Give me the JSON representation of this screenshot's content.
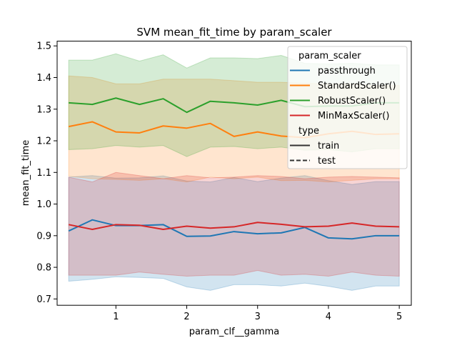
{
  "chart_data": {
    "type": "line",
    "title": "SVM mean_fit_time by param_scaler",
    "xlabel": "param_clf__gamma",
    "ylabel": "mean_fit_time",
    "xlim": [
      0.17,
      5.17
    ],
    "ylim": [
      0.68,
      1.515
    ],
    "xticks": [
      1,
      2,
      3,
      4,
      5
    ],
    "yticks": [
      0.7,
      0.8,
      0.9,
      1.0,
      1.1,
      1.2,
      1.3,
      1.4,
      1.5
    ],
    "x": [
      0.333,
      0.667,
      1.0,
      1.333,
      1.667,
      2.0,
      2.333,
      2.667,
      3.0,
      3.333,
      3.667,
      4.0,
      4.333,
      4.667,
      5.0
    ],
    "legend": {
      "position": "upper right",
      "hue_title": "param_scaler",
      "style_title": "type",
      "style_entries": [
        {
          "label": "train",
          "dash": "solid"
        },
        {
          "label": "test",
          "dash": "dashed"
        }
      ]
    },
    "series": [
      {
        "name": "passthrough",
        "color": "#1f77b4",
        "values": [
          0.915,
          0.95,
          0.932,
          0.932,
          0.935,
          0.898,
          0.899,
          0.913,
          0.906,
          0.909,
          0.926,
          0.893,
          0.89,
          0.9,
          0.9
        ],
        "lower": [
          0.756,
          0.762,
          0.77,
          0.768,
          0.765,
          0.738,
          0.727,
          0.745,
          0.745,
          0.741,
          0.75,
          0.74,
          0.727,
          0.741,
          0.741
        ],
        "upper": [
          1.085,
          1.09,
          1.082,
          1.083,
          1.089,
          1.073,
          1.07,
          1.084,
          1.071,
          1.082,
          1.09,
          1.074,
          1.062,
          1.071,
          1.071
        ]
      },
      {
        "name": "StandardScaler()",
        "color": "#ff7f0e",
        "values": [
          1.245,
          1.26,
          1.228,
          1.225,
          1.247,
          1.24,
          1.255,
          1.214,
          1.228,
          1.215,
          1.21,
          1.222,
          1.23,
          1.22,
          1.222
        ],
        "lower": [
          1.088,
          1.08,
          1.078,
          1.075,
          1.08,
          1.07,
          1.085,
          1.08,
          1.085,
          1.074,
          1.075,
          1.07,
          1.075,
          1.08,
          1.08
        ],
        "upper": [
          1.405,
          1.4,
          1.38,
          1.38,
          1.395,
          1.395,
          1.395,
          1.39,
          1.385,
          1.385,
          1.382,
          1.38,
          1.38,
          1.375,
          1.375
        ]
      },
      {
        "name": "RobustScaler()",
        "color": "#2ca02c",
        "values": [
          1.32,
          1.315,
          1.335,
          1.315,
          1.333,
          1.29,
          1.325,
          1.32,
          1.313,
          1.328,
          1.308,
          1.31,
          1.31,
          1.32,
          1.32
        ],
        "lower": [
          1.172,
          1.175,
          1.185,
          1.18,
          1.185,
          1.15,
          1.18,
          1.182,
          1.175,
          1.18,
          1.17,
          1.172,
          1.165,
          1.175,
          1.175
        ],
        "upper": [
          1.455,
          1.455,
          1.475,
          1.452,
          1.472,
          1.43,
          1.462,
          1.462,
          1.46,
          1.47,
          1.445,
          1.443,
          1.445,
          1.44,
          1.44
        ]
      },
      {
        "name": "MinMaxScaler()",
        "color": "#d62728",
        "values": [
          0.935,
          0.92,
          0.935,
          0.933,
          0.92,
          0.93,
          0.924,
          0.928,
          0.942,
          0.936,
          0.928,
          0.93,
          0.94,
          0.93,
          0.928
        ],
        "lower": [
          0.775,
          0.775,
          0.775,
          0.785,
          0.778,
          0.772,
          0.775,
          0.775,
          0.79,
          0.775,
          0.778,
          0.772,
          0.785,
          0.775,
          0.772
        ],
        "upper": [
          1.085,
          1.07,
          1.1,
          1.09,
          1.08,
          1.09,
          1.083,
          1.085,
          1.09,
          1.087,
          1.08,
          1.085,
          1.087,
          1.085,
          1.083
        ]
      }
    ]
  }
}
